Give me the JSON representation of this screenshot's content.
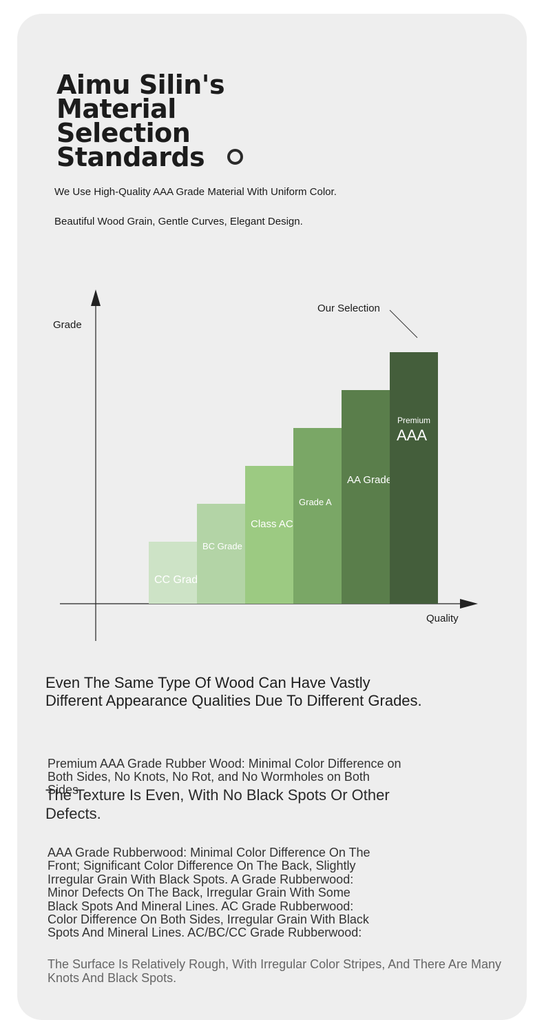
{
  "title": "Aimu Silin's Material Selection Standards",
  "subtitle_1": "We Use High-Quality AAA Grade Material With Uniform Color.",
  "subtitle_2": "Beautiful Wood Grain, Gentle Curves, Elegant Design.",
  "chart_data": {
    "type": "bar",
    "ylabel": "Grade",
    "xlabel": "Quality",
    "annotation": "Our Selection",
    "grid": false,
    "legend": "none",
    "categories": [
      "CC Grade",
      "BC Grade",
      "Class AC",
      "Grade A",
      "AA Grade",
      "AAA"
    ],
    "category_prefix": [
      "",
      "",
      "",
      "",
      "",
      "Premium"
    ],
    "values": [
      1,
      2,
      3,
      4,
      5,
      6
    ],
    "colors": [
      "#cde3c6",
      "#b3d4a6",
      "#9cca82",
      "#7aa766",
      "#5a7e4b",
      "#445e3b"
    ]
  },
  "heading": "Even The Same Type Of Wood Can Have Vastly Different Appearance Qualities Due To Different Grades.",
  "para_1": "Premium AAA Grade Rubber Wood: Minimal Color Difference on Both Sides, No Knots, No Rot, and No Wormholes on Both Sides.",
  "para_2": "The Texture Is Even, With No Black Spots Or Other Defects.",
  "para_3": "AAA Grade Rubberwood: Minimal Color Difference On The Front; Significant Color Difference On The Back, Slightly Irregular Grain With Black Spots. A Grade Rubberwood: Minor Defects On The Back, Irregular Grain With Some Black Spots And Mineral Lines. AC Grade Rubberwood: Color Difference On Both Sides, Irregular Grain With Black Spots And Mineral Lines. AC/BC/CC Grade Rubberwood:",
  "para_4": "The Surface Is Relatively Rough, With Irregular Color Stripes, And There Are Many Knots And Black Spots."
}
